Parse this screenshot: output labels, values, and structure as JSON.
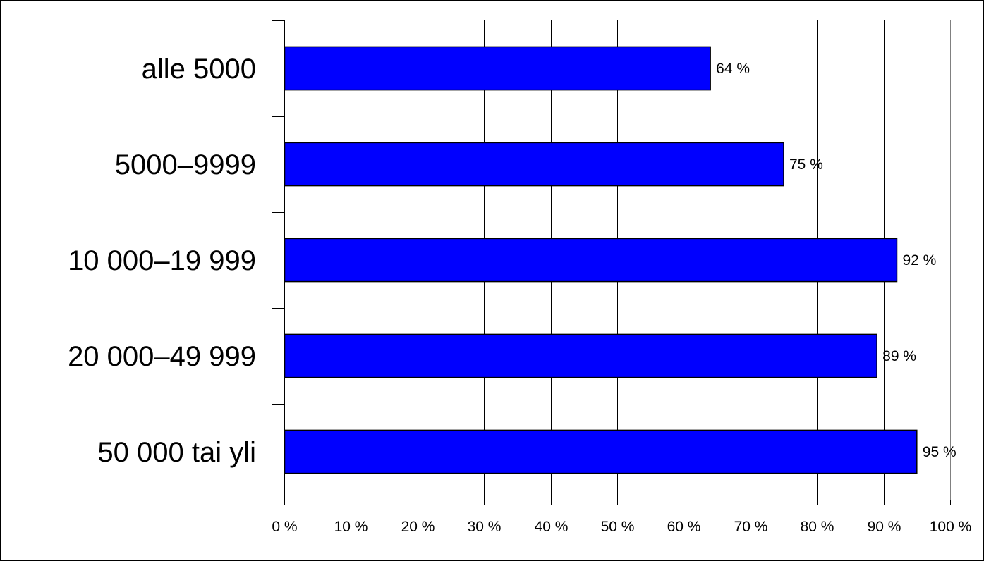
{
  "chart_data": {
    "type": "bar",
    "orientation": "horizontal",
    "categories": [
      "alle 5000",
      "5000–9999",
      "10 000–19 999",
      "20 000–49 999",
      "50 000 tai yli"
    ],
    "values": [
      64,
      75,
      92,
      89,
      95
    ],
    "data_labels": [
      "64 %",
      "75 %",
      "92 %",
      "89 %",
      "95 %"
    ],
    "xlim": [
      0,
      100
    ],
    "x_ticks": [
      0,
      10,
      20,
      30,
      40,
      50,
      60,
      70,
      80,
      90,
      100
    ],
    "x_tick_labels": [
      "0 %",
      "10 %",
      "20 %",
      "30 %",
      "40 %",
      "50 %",
      "60 %",
      "70 %",
      "80 %",
      "90 %",
      "100 %"
    ],
    "grid": true,
    "legend": "none",
    "bar_color": "#0000ff",
    "title": "",
    "xlabel": "",
    "ylabel": ""
  }
}
